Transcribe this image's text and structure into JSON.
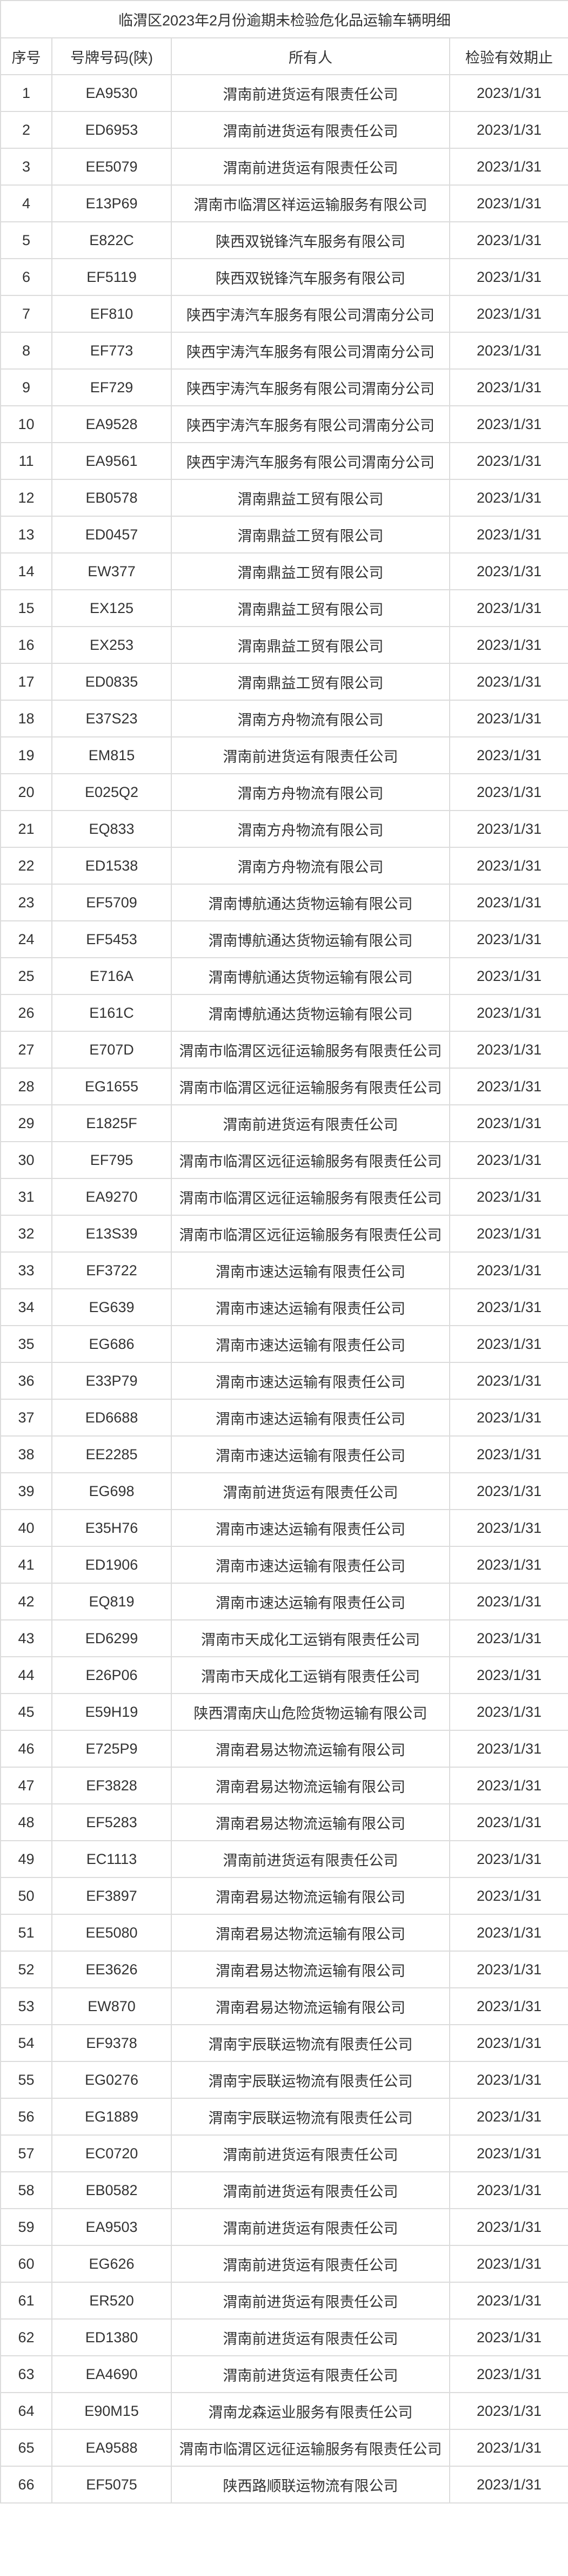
{
  "title": "临渭区2023年2月份逾期未检验危化品运输车辆明细",
  "headers": [
    "序号",
    "号牌号码(陕)",
    "所有人",
    "检验有效期止"
  ],
  "rows": [
    [
      "1",
      "EA9530",
      "渭南前进货运有限责任公司",
      "2023/1/31"
    ],
    [
      "2",
      "ED6953",
      "渭南前进货运有限责任公司",
      "2023/1/31"
    ],
    [
      "3",
      "EE5079",
      "渭南前进货运有限责任公司",
      "2023/1/31"
    ],
    [
      "4",
      "E13P69",
      "渭南市临渭区祥运运输服务有限公司",
      "2023/1/31"
    ],
    [
      "5",
      "E822C",
      "陕西双锐锋汽车服务有限公司",
      "2023/1/31"
    ],
    [
      "6",
      "EF5119",
      "陕西双锐锋汽车服务有限公司",
      "2023/1/31"
    ],
    [
      "7",
      "EF810",
      "陕西宇涛汽车服务有限公司渭南分公司",
      "2023/1/31"
    ],
    [
      "8",
      "EF773",
      "陕西宇涛汽车服务有限公司渭南分公司",
      "2023/1/31"
    ],
    [
      "9",
      "EF729",
      "陕西宇涛汽车服务有限公司渭南分公司",
      "2023/1/31"
    ],
    [
      "10",
      "EA9528",
      "陕西宇涛汽车服务有限公司渭南分公司",
      "2023/1/31"
    ],
    [
      "11",
      "EA9561",
      "陕西宇涛汽车服务有限公司渭南分公司",
      "2023/1/31"
    ],
    [
      "12",
      "EB0578",
      "渭南鼎益工贸有限公司",
      "2023/1/31"
    ],
    [
      "13",
      "ED0457",
      "渭南鼎益工贸有限公司",
      "2023/1/31"
    ],
    [
      "14",
      "EW377",
      "渭南鼎益工贸有限公司",
      "2023/1/31"
    ],
    [
      "15",
      "EX125",
      "渭南鼎益工贸有限公司",
      "2023/1/31"
    ],
    [
      "16",
      "EX253",
      "渭南鼎益工贸有限公司",
      "2023/1/31"
    ],
    [
      "17",
      "ED0835",
      "渭南鼎益工贸有限公司",
      "2023/1/31"
    ],
    [
      "18",
      "E37S23",
      "渭南方舟物流有限公司",
      "2023/1/31"
    ],
    [
      "19",
      "EM815",
      "渭南前进货运有限责任公司",
      "2023/1/31"
    ],
    [
      "20",
      "E025Q2",
      "渭南方舟物流有限公司",
      "2023/1/31"
    ],
    [
      "21",
      "EQ833",
      "渭南方舟物流有限公司",
      "2023/1/31"
    ],
    [
      "22",
      "ED1538",
      "渭南方舟物流有限公司",
      "2023/1/31"
    ],
    [
      "23",
      "EF5709",
      "渭南博航通达货物运输有限公司",
      "2023/1/31"
    ],
    [
      "24",
      "EF5453",
      "渭南博航通达货物运输有限公司",
      "2023/1/31"
    ],
    [
      "25",
      "E716A",
      "渭南博航通达货物运输有限公司",
      "2023/1/31"
    ],
    [
      "26",
      "E161C",
      "渭南博航通达货物运输有限公司",
      "2023/1/31"
    ],
    [
      "27",
      "E707D",
      "渭南市临渭区远征运输服务有限责任公司",
      "2023/1/31"
    ],
    [
      "28",
      "EG1655",
      "渭南市临渭区远征运输服务有限责任公司",
      "2023/1/31"
    ],
    [
      "29",
      "E1825F",
      "渭南前进货运有限责任公司",
      "2023/1/31"
    ],
    [
      "30",
      "EF795",
      "渭南市临渭区远征运输服务有限责任公司",
      "2023/1/31"
    ],
    [
      "31",
      "EA9270",
      "渭南市临渭区远征运输服务有限责任公司",
      "2023/1/31"
    ],
    [
      "32",
      "E13S39",
      "渭南市临渭区远征运输服务有限责任公司",
      "2023/1/31"
    ],
    [
      "33",
      "EF3722",
      "渭南市速达运输有限责任公司",
      "2023/1/31"
    ],
    [
      "34",
      "EG639",
      "渭南市速达运输有限责任公司",
      "2023/1/31"
    ],
    [
      "35",
      "EG686",
      "渭南市速达运输有限责任公司",
      "2023/1/31"
    ],
    [
      "36",
      "E33P79",
      "渭南市速达运输有限责任公司",
      "2023/1/31"
    ],
    [
      "37",
      "ED6688",
      "渭南市速达运输有限责任公司",
      "2023/1/31"
    ],
    [
      "38",
      "EE2285",
      "渭南市速达运输有限责任公司",
      "2023/1/31"
    ],
    [
      "39",
      "EG698",
      "渭南前进货运有限责任公司",
      "2023/1/31"
    ],
    [
      "40",
      "E35H76",
      "渭南市速达运输有限责任公司",
      "2023/1/31"
    ],
    [
      "41",
      "ED1906",
      "渭南市速达运输有限责任公司",
      "2023/1/31"
    ],
    [
      "42",
      "EQ819",
      "渭南市速达运输有限责任公司",
      "2023/1/31"
    ],
    [
      "43",
      "ED6299",
      "渭南市天成化工运销有限责任公司",
      "2023/1/31"
    ],
    [
      "44",
      "E26P06",
      "渭南市天成化工运销有限责任公司",
      "2023/1/31"
    ],
    [
      "45",
      "E59H19",
      "陕西渭南庆山危险货物运输有限公司",
      "2023/1/31"
    ],
    [
      "46",
      "E725P9",
      "渭南君易达物流运输有限公司",
      "2023/1/31"
    ],
    [
      "47",
      "EF3828",
      "渭南君易达物流运输有限公司",
      "2023/1/31"
    ],
    [
      "48",
      "EF5283",
      "渭南君易达物流运输有限公司",
      "2023/1/31"
    ],
    [
      "49",
      "EC1113",
      "渭南前进货运有限责任公司",
      "2023/1/31"
    ],
    [
      "50",
      "EF3897",
      "渭南君易达物流运输有限公司",
      "2023/1/31"
    ],
    [
      "51",
      "EE5080",
      "渭南君易达物流运输有限公司",
      "2023/1/31"
    ],
    [
      "52",
      "EE3626",
      "渭南君易达物流运输有限公司",
      "2023/1/31"
    ],
    [
      "53",
      "EW870",
      "渭南君易达物流运输有限公司",
      "2023/1/31"
    ],
    [
      "54",
      "EF9378",
      "渭南宇辰联运物流有限责任公司",
      "2023/1/31"
    ],
    [
      "55",
      "EG0276",
      "渭南宇辰联运物流有限责任公司",
      "2023/1/31"
    ],
    [
      "56",
      "EG1889",
      "渭南宇辰联运物流有限责任公司",
      "2023/1/31"
    ],
    [
      "57",
      "EC0720",
      "渭南前进货运有限责任公司",
      "2023/1/31"
    ],
    [
      "58",
      "EB0582",
      "渭南前进货运有限责任公司",
      "2023/1/31"
    ],
    [
      "59",
      "EA9503",
      "渭南前进货运有限责任公司",
      "2023/1/31"
    ],
    [
      "60",
      "EG626",
      "渭南前进货运有限责任公司",
      "2023/1/31"
    ],
    [
      "61",
      "ER520",
      "渭南前进货运有限责任公司",
      "2023/1/31"
    ],
    [
      "62",
      "ED1380",
      "渭南前进货运有限责任公司",
      "2023/1/31"
    ],
    [
      "63",
      "EA4690",
      "渭南前进货运有限责任公司",
      "2023/1/31"
    ],
    [
      "64",
      "E90M15",
      "渭南龙森运业服务有限责任公司",
      "2023/1/31"
    ],
    [
      "65",
      "EA9588",
      "渭南市临渭区远征运输服务有限责任公司",
      "2023/1/31"
    ],
    [
      "66",
      "EF5075",
      "陕西路顺联运物流有限公司",
      "2023/1/31"
    ]
  ]
}
